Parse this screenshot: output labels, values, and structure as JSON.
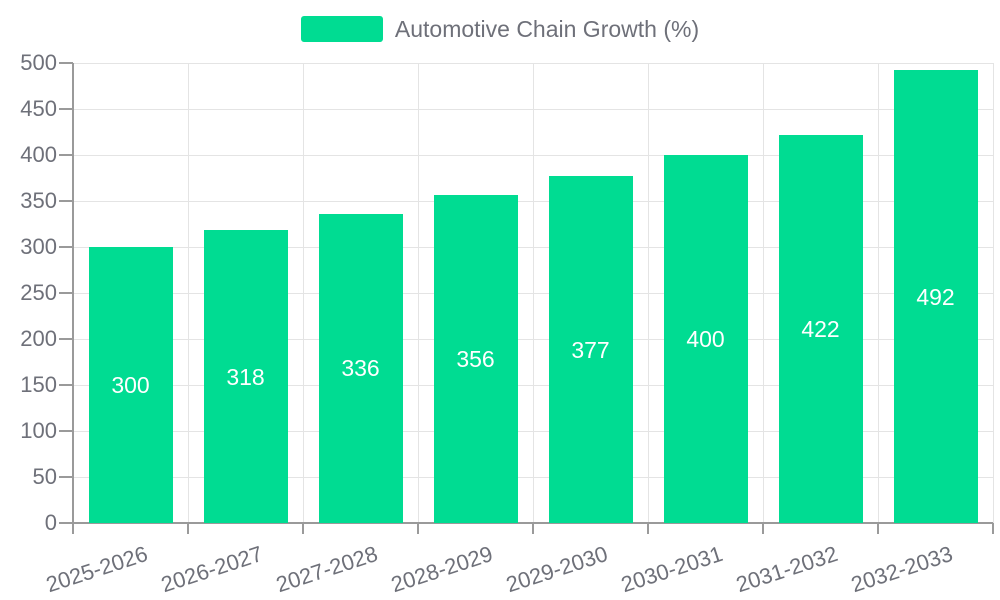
{
  "legend": {
    "label": "Automotive Chain Growth (%)"
  },
  "colors": {
    "bar": "#00DC92",
    "axis": "#9A9A9A",
    "grid": "#E4E4E4",
    "text": "#6E7079",
    "bar_label": "#FFFFFF",
    "background": "#FFFFFF"
  },
  "chart_data": {
    "type": "bar",
    "title": "Automotive Chain Growth (%)",
    "categories": [
      "2025-2026",
      "2026-2027",
      "2027-2028",
      "2028-2029",
      "2029-2030",
      "2030-2031",
      "2031-2032",
      "2032-2033"
    ],
    "values": [
      300,
      318,
      336,
      356,
      377,
      400,
      422,
      492
    ],
    "xlabel": "",
    "ylabel": "",
    "ylim": [
      0,
      500
    ],
    "ytick_step": 50,
    "grid": true,
    "legend_position": "top",
    "bar_labels": "inside-middle",
    "x_label_rotation_deg": -18
  }
}
